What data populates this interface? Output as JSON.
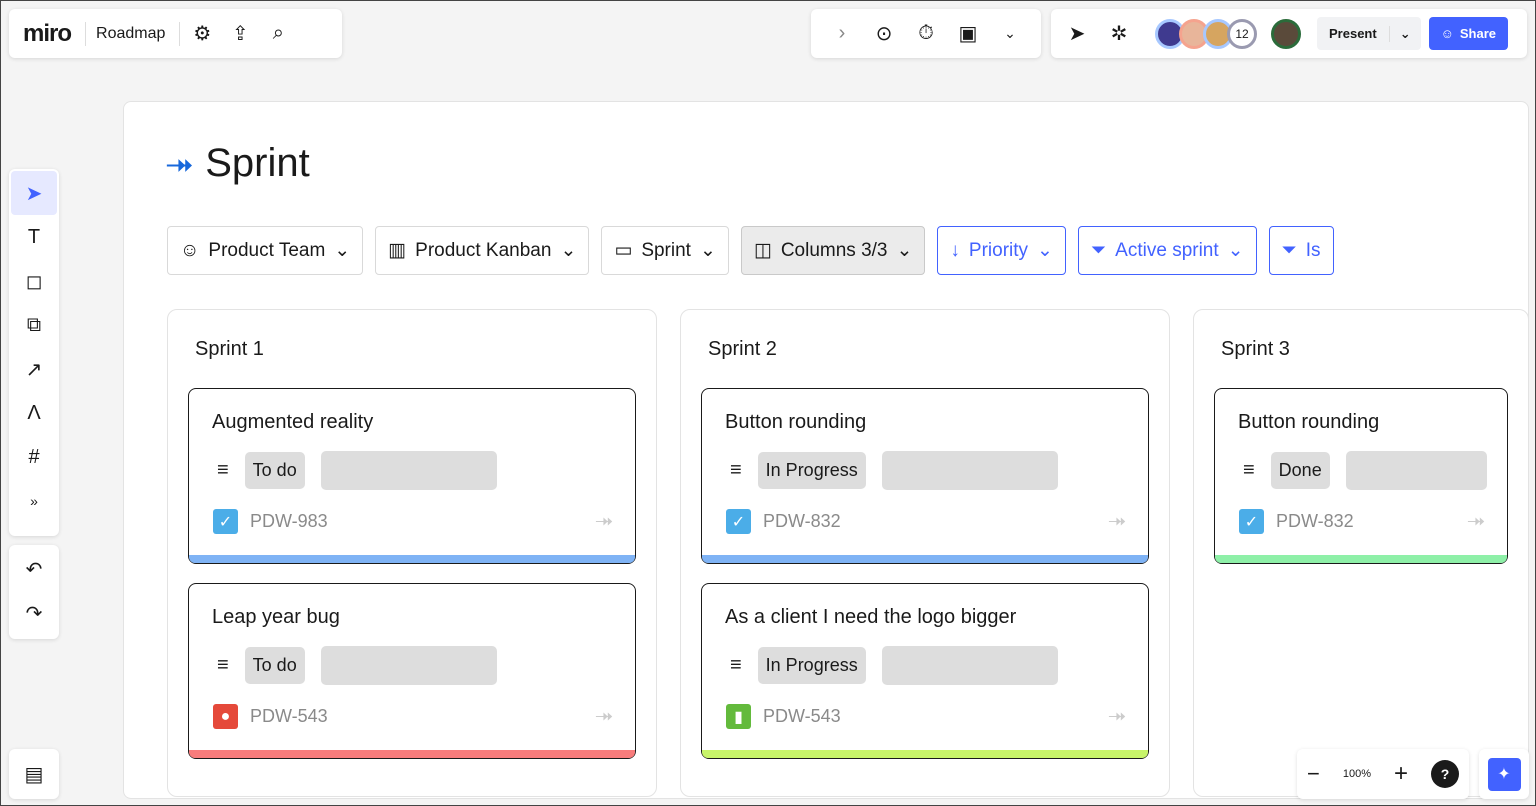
{
  "topbar": {
    "logo": "miro",
    "board_name": "Roadmap",
    "present_label": "Present",
    "share_label": "Share",
    "collaborator_count": "12"
  },
  "board": {
    "title": "Sprint"
  },
  "filters": [
    {
      "label": "Product Team",
      "icon": "team-icon",
      "style": "default"
    },
    {
      "label": "Product Kanban",
      "icon": "columns-icon",
      "style": "default"
    },
    {
      "label": "Sprint",
      "icon": "sprint-icon",
      "style": "default"
    },
    {
      "label": "Columns 3/3",
      "icon": "board-icon",
      "style": "active"
    },
    {
      "label": "Priority",
      "icon": "arrow-down-icon",
      "style": "blue"
    },
    {
      "label": "Active sprint",
      "icon": "filter-icon",
      "style": "blue"
    },
    {
      "label": "Is",
      "icon": "filter-icon",
      "style": "blue"
    }
  ],
  "columns": [
    {
      "title": "Sprint 1",
      "cards": [
        {
          "title": "Augmented reality",
          "status": "To do",
          "key": "PDW-983",
          "type": "task",
          "type_color": "#4bade8",
          "bar_color": "#7fb3f5"
        },
        {
          "title": "Leap year bug",
          "status": "To do",
          "key": "PDW-543",
          "type": "bug",
          "type_color": "#e5493a",
          "bar_color": "#f87c7c"
        }
      ]
    },
    {
      "title": "Sprint 2",
      "cards": [
        {
          "title": "Button rounding",
          "status": "In Progress",
          "key": "PDW-832",
          "type": "task",
          "type_color": "#4bade8",
          "bar_color": "#7fb3f5"
        },
        {
          "title": "As a client I need the logo bigger",
          "status": "In Progress",
          "key": "PDW-543",
          "type": "story",
          "type_color": "#63ba3c",
          "bar_color": "#c8f56a"
        }
      ]
    },
    {
      "title": "Sprint 3",
      "cards": [
        {
          "title": "Button rounding",
          "status": "Done",
          "key": "PDW-832",
          "type": "task",
          "type_color": "#4bade8",
          "bar_color": "#8ef0a8"
        }
      ]
    }
  ],
  "zoom": {
    "level": "100%"
  },
  "colors": {
    "accent": "#4262ff"
  }
}
